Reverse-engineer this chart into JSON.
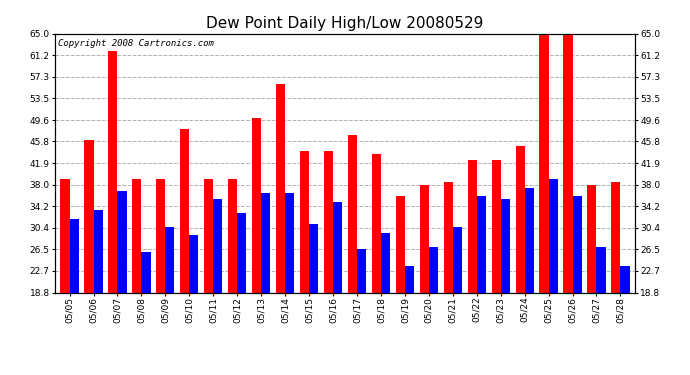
{
  "title": "Dew Point Daily High/Low 20080529",
  "copyright": "Copyright 2008 Cartronics.com",
  "dates": [
    "05/05",
    "05/06",
    "05/07",
    "05/08",
    "05/09",
    "05/10",
    "05/11",
    "05/12",
    "05/13",
    "05/14",
    "05/15",
    "05/16",
    "05/17",
    "05/18",
    "05/19",
    "05/20",
    "05/21",
    "05/22",
    "05/23",
    "05/24",
    "05/25",
    "05/26",
    "05/27",
    "05/28"
  ],
  "highs": [
    39.0,
    46.0,
    62.0,
    39.0,
    39.0,
    48.0,
    39.0,
    39.0,
    50.0,
    56.0,
    44.0,
    44.0,
    47.0,
    43.5,
    36.0,
    38.0,
    38.5,
    42.5,
    42.5,
    45.0,
    65.0,
    65.0,
    38.0,
    38.5
  ],
  "lows": [
    32.0,
    33.5,
    37.0,
    26.0,
    30.5,
    29.0,
    35.5,
    33.0,
    36.5,
    36.5,
    31.0,
    35.0,
    26.5,
    29.5,
    23.5,
    27.0,
    30.5,
    36.0,
    35.5,
    37.5,
    39.0,
    36.0,
    27.0,
    23.5
  ],
  "y_min": 18.8,
  "y_max": 65.0,
  "y_ticks": [
    18.8,
    22.7,
    26.5,
    30.4,
    34.2,
    38.0,
    41.9,
    45.8,
    49.6,
    53.5,
    57.3,
    61.2,
    65.0
  ],
  "high_color": "#ff0000",
  "low_color": "#0000ff",
  "bg_color": "#ffffff",
  "plot_bg_color": "#ffffff",
  "grid_color": "#b0b0b0",
  "title_fontsize": 11,
  "tick_fontsize": 6.5,
  "copyright_fontsize": 6.5
}
